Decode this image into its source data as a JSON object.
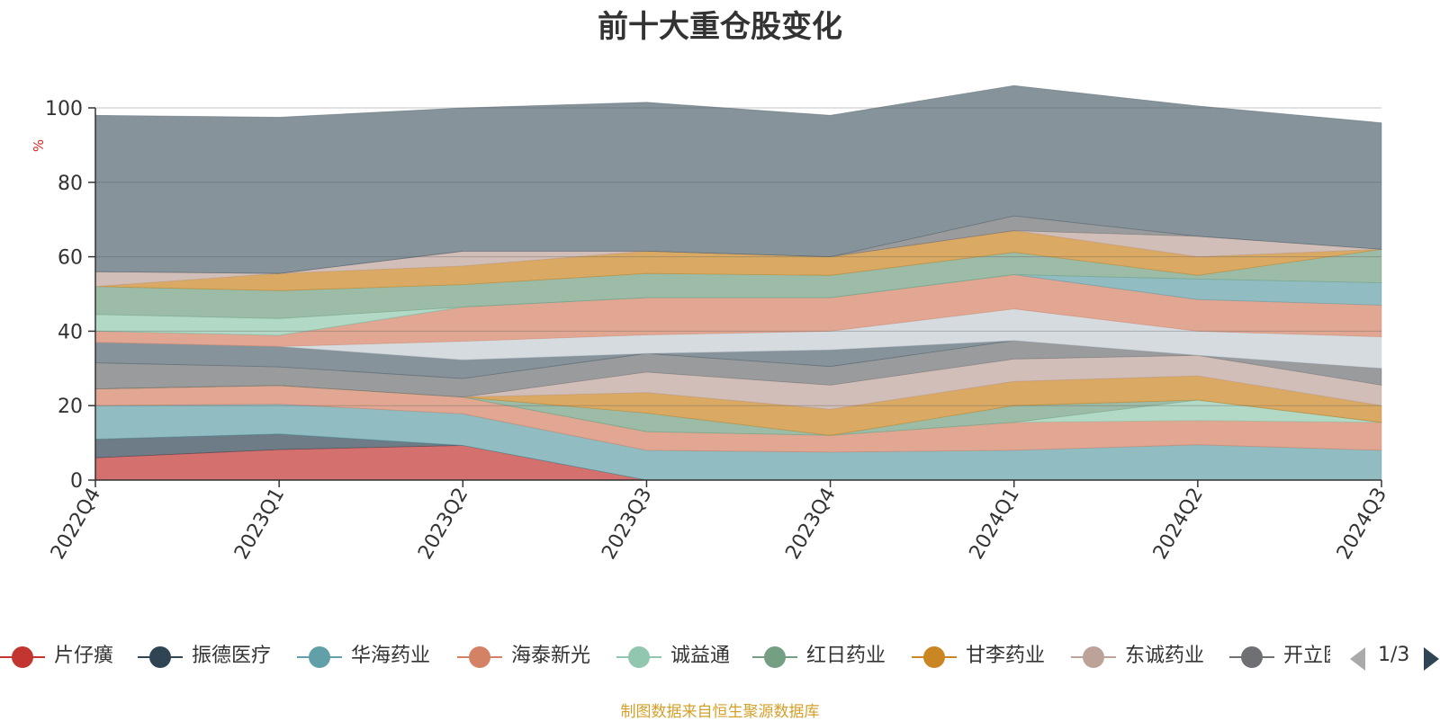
{
  "chart_data": {
    "type": "area",
    "stacked": true,
    "title": "前十大重仓股变化",
    "ylabel": "%",
    "ylim": [
      0,
      100
    ],
    "yticks": [
      0,
      20,
      40,
      60,
      80,
      100
    ],
    "categories": [
      "2022Q4",
      "2023Q1",
      "2023Q2",
      "2023Q3",
      "2023Q4",
      "2024Q1",
      "2024Q2",
      "2024Q3"
    ],
    "grid": true,
    "legend_position": "bottom",
    "series": [
      {
        "name": "片仔癀",
        "color": "#c23531",
        "values": [
          6,
          8.2,
          9.3,
          0,
          0,
          0,
          0,
          0
        ]
      },
      {
        "name": "振德医疗",
        "color": "#2f4554",
        "values": [
          5,
          4.2,
          0,
          0,
          0,
          0,
          0,
          0
        ]
      },
      {
        "name": "华海药业",
        "color": "#61a0a8",
        "values": [
          9,
          8,
          8.5,
          8,
          7.5,
          8,
          9.5,
          8
        ]
      },
      {
        "name": "海泰新光",
        "color": "#d48265",
        "values": [
          4.5,
          5,
          4.5,
          5,
          4.5,
          7.5,
          6.5,
          7.5
        ]
      },
      {
        "name": "诚益通",
        "color": "#91c7ae",
        "values": [
          0,
          0,
          0,
          0,
          0,
          0,
          5.5,
          0
        ]
      },
      {
        "name": "红日药业",
        "color": "#749f83",
        "values": [
          0,
          0,
          0,
          5,
          0,
          4.5,
          0,
          0
        ]
      },
      {
        "name": "甘李药业",
        "color": "#ca8622",
        "values": [
          0,
          0,
          0,
          5.5,
          7,
          6.5,
          6.5,
          4.5
        ]
      },
      {
        "name": "东诚药业",
        "color": "#bda29a",
        "values": [
          0,
          0,
          0,
          5.5,
          6.5,
          6,
          5.5,
          5.5
        ]
      },
      {
        "name": "开立医疗",
        "color": "#6e7074",
        "values": [
          7,
          5,
          5,
          5,
          5,
          5,
          0,
          4.5
        ]
      },
      {
        "name": "",
        "color": "#546570",
        "values": [
          5.5,
          5.5,
          5,
          0,
          4.5,
          0,
          0,
          0
        ]
      },
      {
        "name": "",
        "color": "#c4ccd3",
        "values": [
          0,
          0,
          5,
          5,
          5,
          8.5,
          6.5,
          8.5
        ]
      },
      {
        "name": "",
        "color": "#d48265",
        "values": [
          3,
          3,
          9.2,
          10,
          9,
          9.2,
          8.5,
          8.5
        ]
      },
      {
        "name": "",
        "color": "#61a0a8",
        "values": [
          0,
          0,
          0,
          0,
          0,
          0,
          5.5,
          6
        ]
      },
      {
        "name": "",
        "color": "#91c7ae",
        "values": [
          4.5,
          4.5,
          0,
          0,
          0,
          0,
          0,
          0
        ]
      },
      {
        "name": "",
        "color": "#749f83",
        "values": [
          7.5,
          7.5,
          6,
          6.5,
          6,
          6,
          1,
          9
        ]
      },
      {
        "name": "",
        "color": "#ca8622",
        "values": [
          0,
          4.6,
          5,
          6,
          5,
          5.8,
          5,
          0
        ]
      },
      {
        "name": "",
        "color": "#bda29a",
        "values": [
          4,
          0,
          4,
          0,
          0,
          0,
          5.5,
          0
        ]
      },
      {
        "name": "",
        "color": "#6e7074",
        "values": [
          0,
          0,
          0,
          0,
          0,
          4,
          0,
          0
        ]
      },
      {
        "name": "",
        "color": "#546570",
        "values": [
          42,
          42,
          38.5,
          40,
          38,
          35,
          35,
          34
        ]
      }
    ]
  },
  "legend": {
    "items": [
      "片仔癀",
      "振德医疗",
      "华海药业",
      "海泰新光",
      "诚益通",
      "红日药业",
      "甘李药业",
      "东诚药业",
      "开立医疗"
    ],
    "colors": [
      "#c23531",
      "#2f4554",
      "#61a0a8",
      "#d48265",
      "#91c7ae",
      "#749f83",
      "#ca8622",
      "#bda29a",
      "#6e7074"
    ],
    "page": "1/3"
  },
  "footer": "制图数据来自恒生聚源数据库"
}
